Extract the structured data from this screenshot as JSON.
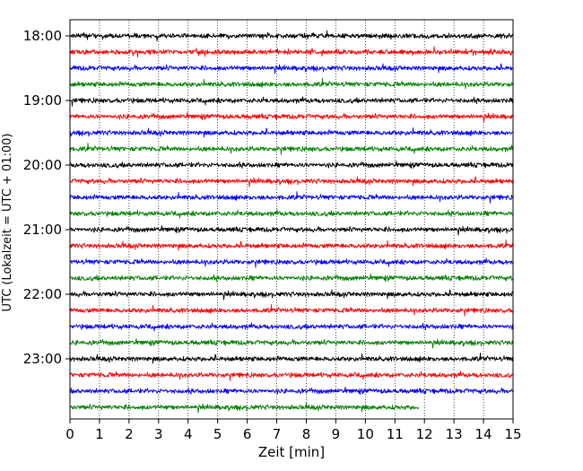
{
  "chart_data": {
    "type": "line",
    "subtype": "helicorder",
    "xlabel": "Zeit  [min]",
    "ylabel": "UTC (Lokalzeit = UTC + 01:00)",
    "xlim": [
      0,
      15
    ],
    "x_ticks": [
      "0",
      "1",
      "2",
      "3",
      "4",
      "5",
      "6",
      "7",
      "8",
      "9",
      "10",
      "11",
      "12",
      "13",
      "14",
      "15"
    ],
    "y_tick_labels": [
      "18:00",
      "19:00",
      "20:00",
      "21:00",
      "22:00",
      "23:00"
    ],
    "trace_colors": [
      "#000000",
      "#ff0000",
      "#0000ff",
      "#008000"
    ],
    "grid": "vertical-dotted",
    "legend": "none",
    "traces": [
      {
        "start": "18:00",
        "end_minute": 15
      },
      {
        "start": "18:15",
        "end_minute": 15
      },
      {
        "start": "18:30",
        "end_minute": 15
      },
      {
        "start": "18:45",
        "end_minute": 15
      },
      {
        "start": "19:00",
        "end_minute": 15
      },
      {
        "start": "19:15",
        "end_minute": 15
      },
      {
        "start": "19:30",
        "end_minute": 15
      },
      {
        "start": "19:45",
        "end_minute": 15
      },
      {
        "start": "20:00",
        "end_minute": 15
      },
      {
        "start": "20:15",
        "end_minute": 15
      },
      {
        "start": "20:30",
        "end_minute": 15
      },
      {
        "start": "20:45",
        "end_minute": 15
      },
      {
        "start": "21:00",
        "end_minute": 15
      },
      {
        "start": "21:15",
        "end_minute": 15
      },
      {
        "start": "21:30",
        "end_minute": 15
      },
      {
        "start": "21:45",
        "end_minute": 15
      },
      {
        "start": "22:00",
        "end_minute": 15
      },
      {
        "start": "22:15",
        "end_minute": 15
      },
      {
        "start": "22:30",
        "end_minute": 15
      },
      {
        "start": "22:45",
        "end_minute": 15
      },
      {
        "start": "23:00",
        "end_minute": 15
      },
      {
        "start": "23:15",
        "end_minute": 15
      },
      {
        "start": "23:30",
        "end_minute": 15
      },
      {
        "start": "23:45",
        "end_minute": 11.8
      }
    ]
  }
}
